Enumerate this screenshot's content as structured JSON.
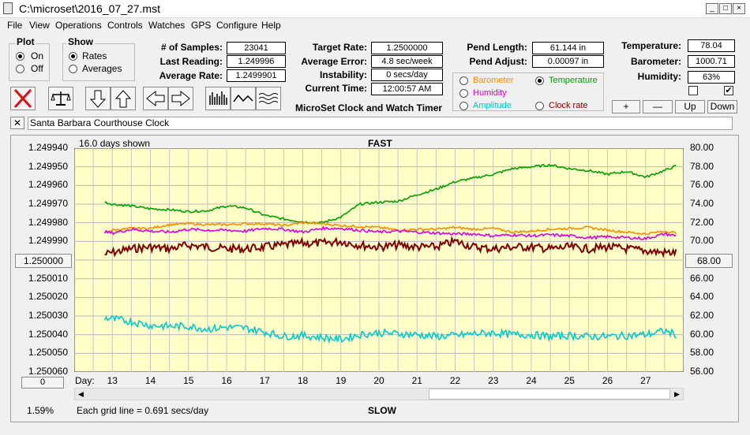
{
  "window": {
    "title": "C:\\microset\\2016_07_27.mst",
    "min": "_",
    "max": "□",
    "close": "×"
  },
  "menu": [
    "File",
    "View",
    "Operations",
    "Controls",
    "Watches",
    "GPS",
    "Configure",
    "Help"
  ],
  "plot": {
    "title": "Plot",
    "on": "On",
    "off": "Off",
    "selected": "On"
  },
  "show": {
    "title": "Show",
    "rates": "Rates",
    "averages": "Averages",
    "selected": "Rates"
  },
  "stats1": {
    "samples_label": "# of Samples:",
    "samples": "23041",
    "last_label": "Last Reading:",
    "last": "1.249996",
    "avg_label": "Average Rate:",
    "avg": "1.2499901"
  },
  "stats2": {
    "target_label": "Target Rate:",
    "target": "1.2500000",
    "avgerr_label": "Average Error:",
    "avgerr": "4.8 sec/week",
    "instab_label": "Instability:",
    "instab": "0 secs/day",
    "time_label": "Current Time:",
    "time": "12:00:57 AM",
    "product": "MicroSet Clock and Watch Timer"
  },
  "pend": {
    "length_label": "Pend Length:",
    "length": "61.144 in",
    "adjust_label": "Pend Adjust:",
    "adjust": "0.00097 in"
  },
  "env": {
    "temp_label": "Temperature:",
    "temp": "78.04",
    "baro_label": "Barometer:",
    "baro": "1000.71",
    "hum_label": "Humidity:",
    "hum": "63%"
  },
  "secondary": {
    "barometer": "Barometer",
    "temperature": "Temperature",
    "humidity": "Humidity",
    "amplitude": "Amplitude",
    "clockrate": "Clock rate",
    "selected": "Temperature",
    "colors": {
      "barometer": "#ff8c00",
      "temperature": "#00a000",
      "humidity": "#e000e0",
      "amplitude": "#00cccc",
      "clockrate": "#800000"
    }
  },
  "scale_buttons": [
    "+",
    "—",
    "Up",
    "Down"
  ],
  "clock_name": "Santa Barbara Courthouse Clock",
  "chart": {
    "days_shown": "16.0 days shown",
    "top_label": "FAST",
    "bottom_label": "SLOW",
    "center_left": "1.250000",
    "center_right": "68.00",
    "day_label": "Day:",
    "grid_note": "Each grid line = 0.691 secs/day",
    "scroll_value": "0",
    "percent": "1.59%"
  },
  "chart_data": {
    "type": "line",
    "x": [
      12.8,
      13,
      13.5,
      14,
      14.5,
      15,
      15.5,
      16,
      16.5,
      17,
      17.5,
      18,
      18.5,
      19,
      19.5,
      20,
      20.5,
      21,
      21.5,
      22,
      22.5,
      23,
      23.5,
      24,
      24.5,
      25,
      25.5,
      26,
      26.5,
      27,
      27.5,
      27.8
    ],
    "xticks": [
      13,
      14,
      15,
      16,
      17,
      18,
      19,
      20,
      21,
      22,
      23,
      24,
      25,
      26,
      27
    ],
    "xlim": [
      12,
      28
    ],
    "y_left": {
      "ticks": [
        "1.249940",
        "1.249950",
        "1.249960",
        "1.249970",
        "1.249980",
        "1.249990",
        "1.250000",
        "1.250010",
        "1.250020",
        "1.250030",
        "1.250040",
        "1.250050",
        "1.250060"
      ],
      "ylim": [
        1.24994,
        1.25006
      ]
    },
    "y_right": {
      "ticks": [
        "80.00",
        "78.00",
        "76.00",
        "74.00",
        "72.00",
        "70.00",
        "68.00",
        "66.00",
        "64.00",
        "62.00",
        "60.00",
        "58.00",
        "56.00"
      ],
      "ylim": [
        56,
        80
      ]
    },
    "series": [
      {
        "name": "Clock rate",
        "axis": "left",
        "color": "#800000",
        "values": [
          1.249997,
          1.249996,
          1.249994,
          1.249993,
          1.249994,
          1.249992,
          1.249993,
          1.249994,
          1.249994,
          1.249993,
          1.249992,
          1.249991,
          1.249991,
          1.24999,
          1.249992,
          1.249993,
          1.249992,
          1.249993,
          1.249993,
          1.24999,
          1.249993,
          1.249994,
          1.249993,
          1.249993,
          1.249994,
          1.249993,
          1.249994,
          1.249993,
          1.249994,
          1.249995,
          1.249996,
          1.249996
        ]
      },
      {
        "name": "Temperature",
        "axis": "right",
        "color": "#00a000",
        "values": [
          74.2,
          74.0,
          73.8,
          73.5,
          73.4,
          73.2,
          73.3,
          73.8,
          73.6,
          72.8,
          72.4,
          72.1,
          72.0,
          72.6,
          74.0,
          74.2,
          74.3,
          75.0,
          75.6,
          76.4,
          76.8,
          77.2,
          77.8,
          78.0,
          78.2,
          77.8,
          77.6,
          77.2,
          77.5,
          76.9,
          77.6,
          78.1
        ]
      },
      {
        "name": "Barometer",
        "axis": "right",
        "color": "#ff8c00",
        "values": [
          71.0,
          71.2,
          71.4,
          71.4,
          71.8,
          71.9,
          71.8,
          71.8,
          71.9,
          71.9,
          71.7,
          72.0,
          71.9,
          71.7,
          71.6,
          71.5,
          71.2,
          71.3,
          71.3,
          71.5,
          71.3,
          71.4,
          71.0,
          71.1,
          71.3,
          71.4,
          71.5,
          71.2,
          71.0,
          70.8,
          71.1,
          70.9
        ]
      },
      {
        "name": "Humidity",
        "axis": "right",
        "color": "#e000e0",
        "values": [
          71.0,
          70.9,
          71.3,
          71.1,
          71.0,
          71.3,
          71.2,
          71.2,
          71.1,
          71.4,
          71.3,
          71.0,
          71.4,
          71.4,
          71.2,
          71.0,
          71.1,
          71.0,
          70.9,
          70.8,
          70.8,
          70.6,
          70.7,
          70.6,
          70.7,
          70.6,
          70.4,
          70.5,
          70.4,
          70.3,
          70.8,
          70.6
        ]
      },
      {
        "name": "Amplitude",
        "axis": "right",
        "color": "#00cccc",
        "values": [
          61.8,
          61.7,
          61.4,
          61.0,
          60.9,
          60.9,
          60.6,
          60.8,
          60.7,
          60.3,
          59.8,
          59.9,
          59.7,
          59.5,
          60.0,
          60.2,
          60.1,
          60.0,
          59.8,
          59.9,
          60.1,
          60.2,
          60.0,
          60.0,
          59.8,
          59.9,
          59.8,
          59.8,
          59.9,
          60.0,
          60.4,
          60.0
        ]
      }
    ]
  }
}
